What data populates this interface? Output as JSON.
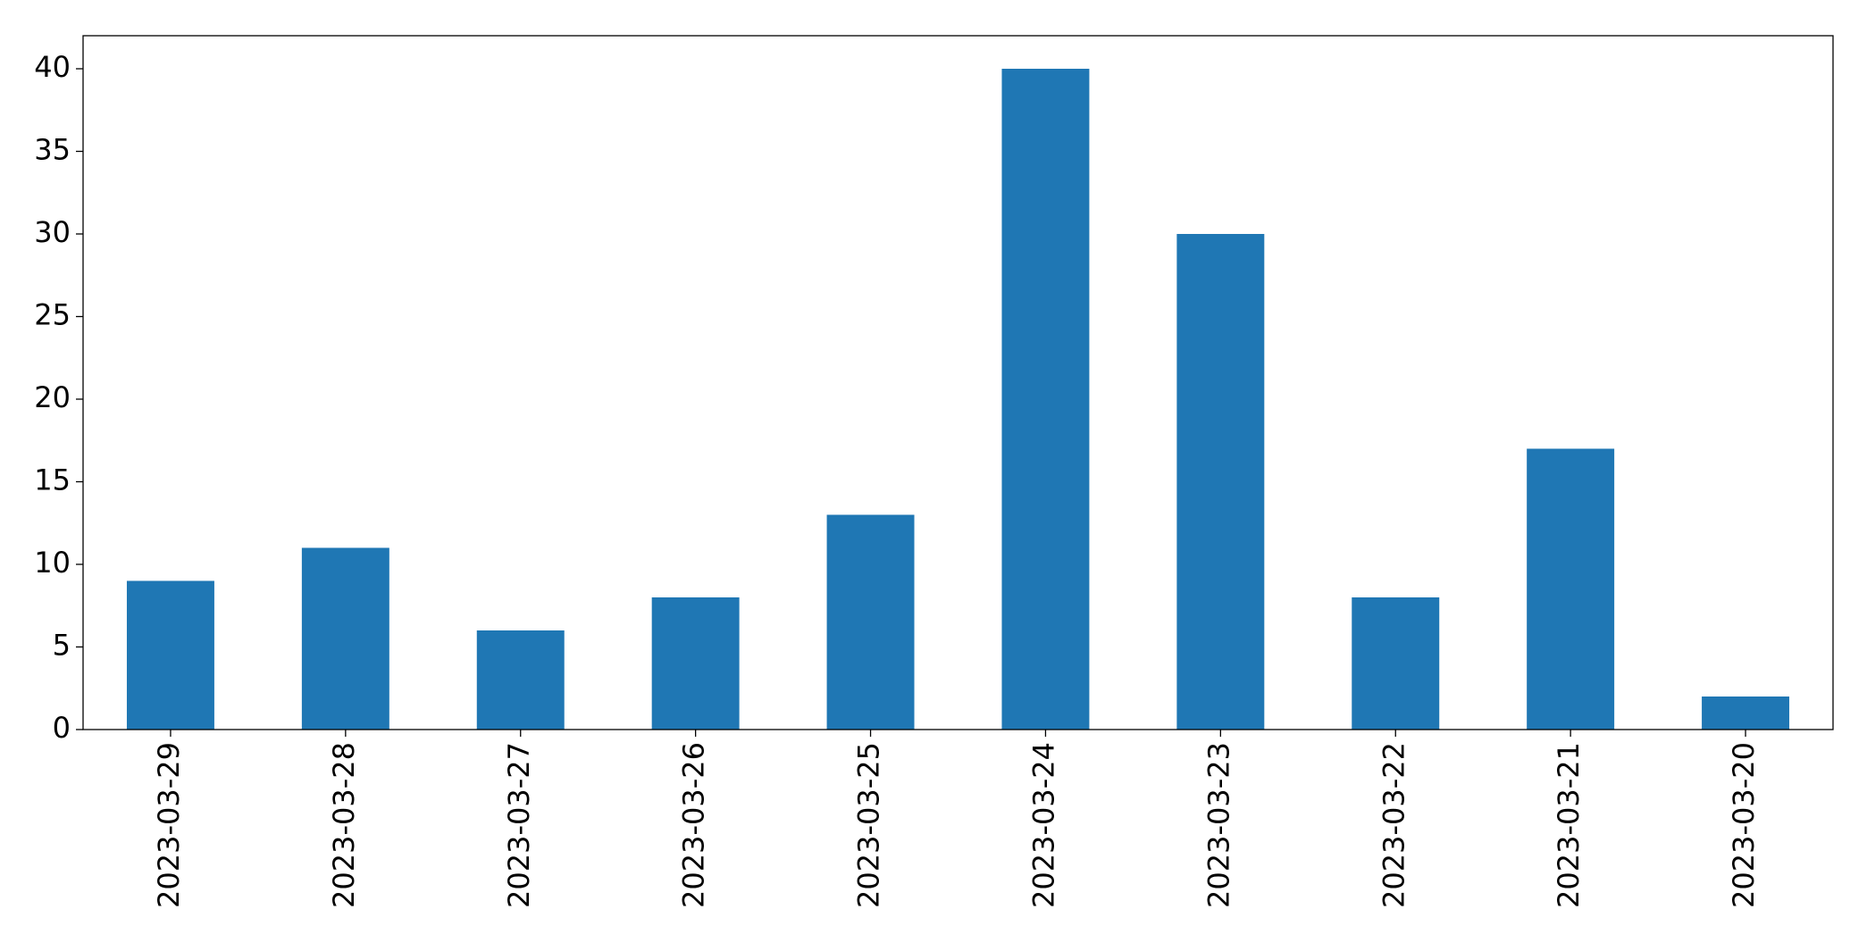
{
  "chart_data": {
    "type": "bar",
    "categories": [
      "2023-03-29",
      "2023-03-28",
      "2023-03-27",
      "2023-03-26",
      "2023-03-25",
      "2023-03-24",
      "2023-03-23",
      "2023-03-22",
      "2023-03-21",
      "2023-03-20"
    ],
    "values": [
      9,
      11,
      6,
      8,
      13,
      40,
      30,
      8,
      17,
      2
    ],
    "color": "#1f77b4",
    "ylim": [
      0,
      42
    ],
    "yticks": [
      0,
      5,
      10,
      15,
      20,
      25,
      30,
      35,
      40
    ],
    "grid": false
  }
}
